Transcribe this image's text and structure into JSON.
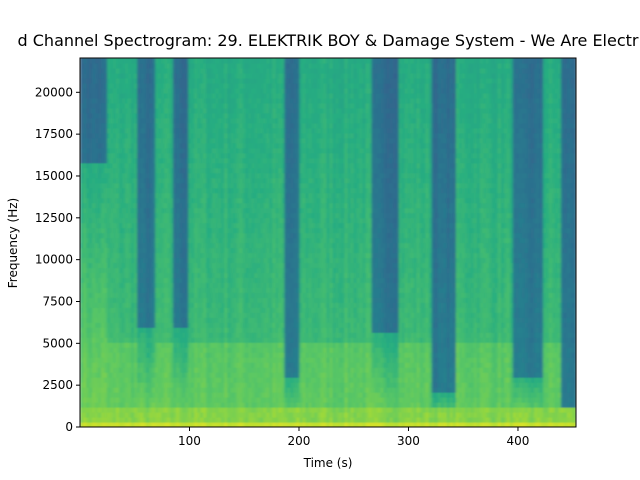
{
  "chart_data": {
    "type": "heatmap",
    "title": "d Channel Spectrogram: 29. ELEKTRIK BOY & Damage System - We Are Electr",
    "xlabel": "Time (s)",
    "ylabel": "Frequency (Hz)",
    "xlim": [
      0,
      453
    ],
    "ylim": [
      0,
      22050
    ],
    "x_ticks": [
      100,
      200,
      300,
      400
    ],
    "y_ticks": [
      0,
      2500,
      5000,
      7500,
      10000,
      12500,
      15000,
      17500,
      20000
    ],
    "colormap": "viridis",
    "quiet_segments": [
      {
        "start": 0,
        "end": 25,
        "cutoff_hz": 15800
      },
      {
        "start": 53,
        "end": 68,
        "cutoff_hz": 6000
      },
      {
        "start": 85,
        "end": 100,
        "cutoff_hz": 6000
      },
      {
        "start": 188,
        "end": 200,
        "cutoff_hz": 3000
      },
      {
        "start": 266,
        "end": 290,
        "cutoff_hz": 5800
      },
      {
        "start": 320,
        "end": 343,
        "cutoff_hz": 2000
      },
      {
        "start": 396,
        "end": 422,
        "cutoff_hz": 3000
      },
      {
        "start": 440,
        "end": 453,
        "cutoff_hz": 1200
      }
    ],
    "loud_segments": [
      {
        "start": 25,
        "end": 53
      },
      {
        "start": 100,
        "end": 188
      },
      {
        "start": 200,
        "end": 266
      },
      {
        "start": 290,
        "end": 320
      },
      {
        "start": 343,
        "end": 396
      }
    ]
  }
}
